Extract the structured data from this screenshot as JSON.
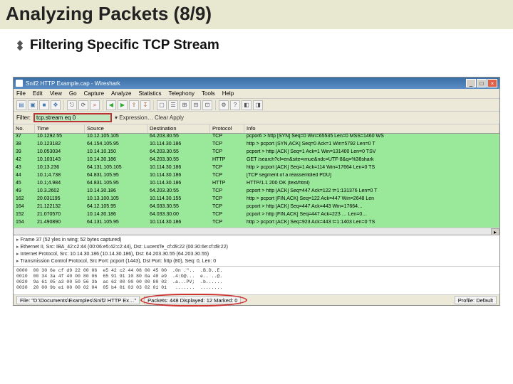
{
  "slide": {
    "title": "Analyzing Packets (8/9)",
    "subtitle": "Filtering Specific TCP Stream",
    "title_bg": "#e8e8d0"
  },
  "window": {
    "title": "Snif2   HTTP Example.cap - Wireshark",
    "btn_min": "_",
    "btn_max": "□",
    "btn_close": "×"
  },
  "menu": {
    "items": [
      "File",
      "Edit",
      "View",
      "Go",
      "Capture",
      "Analyze",
      "Statistics",
      "Telephony",
      "Tools",
      "Help"
    ]
  },
  "toolbar": {
    "icons": [
      "▤",
      "▣",
      "■",
      "✥",
      "⎋",
      "⟳",
      "⌕",
      "◀",
      "▶",
      "⇪",
      "↧",
      "▢",
      "☰",
      "⊞",
      "⊟",
      "⊡",
      "⚙",
      "?",
      "◧",
      "◨"
    ]
  },
  "filter": {
    "label": "Filter:",
    "value": "tcp.stream eq 0",
    "rest": "▾  Expression…  Clear  Apply"
  },
  "packet_columns": {
    "no": "No.",
    "time": "Time",
    "src": "Source",
    "dst": "Destination",
    "proto": "Protocol",
    "info": "Info"
  },
  "packets": [
    {
      "no": "37",
      "time": "10.1292.55",
      "src": "10.12.105.105",
      "dst": "64.203.30.55",
      "proto": "TCP",
      "info": "pcpor6 > http [SYN] Seq=0 Win=65535 Len=0 MSS=1460 WS"
    },
    {
      "no": "38",
      "time": "10.123182",
      "src": "64.154.105.95",
      "dst": "10.114.30.186",
      "proto": "TCP",
      "info": "http > pcport [SYN,ACK] Seq=0 Ack=1 Win=5792 Len=0 T"
    },
    {
      "no": "39",
      "time": "10.053034",
      "src": "10.14.10.150",
      "dst": "64.203.30.55",
      "proto": "TCP",
      "info": "pcport > http [ACK] Seq=1 Ack=1 Win=131400 Len=0 TSV"
    },
    {
      "no": "42",
      "time": "10.103143",
      "src": "10.14.30.186",
      "dst": "64.203.30.55",
      "proto": "HTTP",
      "info": "GET /search?cl=en&site=imue&ndc=UTF-8&q=%38shark"
    },
    {
      "no": "43",
      "time": "10;13.236",
      "src": "64.131.105.105",
      "dst": "10.114.30.186",
      "proto": "TCP",
      "info": "http > pcport [ACK] Seq=1 Ack=114 Win=17664 Len=0 TS"
    },
    {
      "no": "44",
      "time": "10.1;4.738",
      "src": "64.831.105.95",
      "dst": "10.114.30.186",
      "proto": "TCP",
      "info": "[TCP segment of a reassembled PDU]"
    },
    {
      "no": "45",
      "time": "10.1;4.984",
      "src": "64.831.105.95",
      "dst": "10.114.30.186",
      "proto": "HTTP",
      "info": "HTTP/1.1 200 OK  (text/html)"
    },
    {
      "no": "49",
      "time": "10.3.2602",
      "src": "10.14.30.186",
      "dst": "64.203.30.55",
      "proto": "TCP",
      "info": "pcport > http [ACK] Seq=447 Ack=122 t=1:131376 Len=0 T"
    },
    {
      "no": "162",
      "time": "20.031195",
      "src": "10.13.100.105",
      "dst": "10.114.30.155",
      "proto": "TCP",
      "info": "http > pcport [FIN,ACK] Seq=122 Ack=447 Win=2648 Len"
    },
    {
      "no": "164",
      "time": "21.122132",
      "src": "64.12.105.95",
      "dst": "64.033.30.55",
      "proto": "TCP",
      "info": "pcport > http [ACK] Seq=447 Ack=443 Win=17664…"
    },
    {
      "no": "152",
      "time": "21.070570",
      "src": "10.14.30.186",
      "dst": "64.033.30.00",
      "proto": "TCP",
      "info": "pcport > http [FIN,ACK] Seq=447 Ack=223 … Len=0…"
    },
    {
      "no": "154",
      "time": "21.490890",
      "src": "64.131.105.95",
      "dst": "10.114.30.186",
      "proto": "TCP",
      "info": "http > pcport [ACK] Seq=923 Ack=443 t=1:1403 Len=0 TS"
    }
  ],
  "details": {
    "l1": "Frame 37 (52 yles in wing; 52 bytes captured)",
    "l2": "Ethernet II, Src: IBA_42:c2:44 (00:06:e5:42:c2:44), Dst: LucentTe_cf:d9:22 (00:30:6e:cf:d9:22)",
    "l3": "Internet Protocol, Src: 10.14.30.186 (10.14.30.186), Dst: 64.203.30.55 (64.203.30.55)",
    "l4": "Transmission Control Protocol, Src Port: pcport (1443), Dst Port: http (80), Seq: 0, Len: 0"
  },
  "hex": {
    "offsets": "0000\n0010\n0020\n0030",
    "bytes1": "00 30 6e cf d9 22 00 06\n00 34 3a 4f 40 00 80 06\n9a 61 05 a3 00 50 56 3b\n20 00 9b e1 00 00 02 04",
    "bytes2": "e5 42 c2 44 08 00 45 00\n65 91 91 10 80 0a 40 e9\nac 62 00 00 00 00 80 02\n05 b4 01 03 03 02 01 01",
    "ascii": ".0n .\"..  .B.D..E.\n.4:O@...  e.. ..@.\n.a...PV;  .b......\n .......  ........"
  },
  "status": {
    "left": "File: \"D:\\Documents\\Examples\\Snif2   HTTP Ex…\"",
    "mid": "Packets: 448 Displayed: 12 Marked: 0",
    "right": "Profile: Default"
  }
}
